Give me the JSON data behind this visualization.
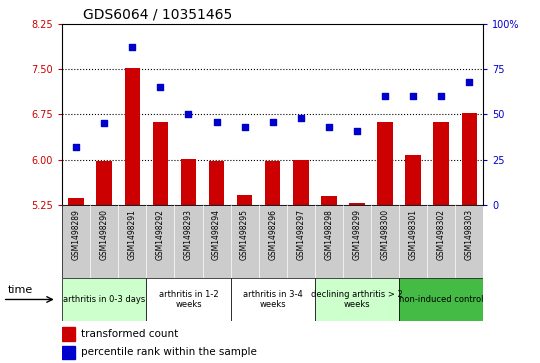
{
  "title": "GDS6064 / 10351465",
  "samples": [
    "GSM1498289",
    "GSM1498290",
    "GSM1498291",
    "GSM1498292",
    "GSM1498293",
    "GSM1498294",
    "GSM1498295",
    "GSM1498296",
    "GSM1498297",
    "GSM1498298",
    "GSM1498299",
    "GSM1498300",
    "GSM1498301",
    "GSM1498302",
    "GSM1498303"
  ],
  "bar_values": [
    5.37,
    5.98,
    7.52,
    6.62,
    6.02,
    5.98,
    5.42,
    5.98,
    5.99,
    5.4,
    5.28,
    6.62,
    6.07,
    6.62,
    6.78
  ],
  "blue_values": [
    32,
    45,
    87,
    65,
    50,
    46,
    43,
    46,
    48,
    43,
    41,
    60,
    60,
    60,
    68
  ],
  "ylim_left": [
    5.25,
    8.25
  ],
  "ylim_right": [
    0,
    100
  ],
  "yticks_left": [
    5.25,
    6.0,
    6.75,
    7.5,
    8.25
  ],
  "yticks_right": [
    0,
    25,
    50,
    75,
    100
  ],
  "bar_color": "#cc0000",
  "dot_color": "#0000cc",
  "grid_color": "#000000",
  "groups": [
    {
      "label": "arthritis in 0-3 days",
      "start": 0,
      "end": 3,
      "color": "#ccffcc"
    },
    {
      "label": "arthritis in 1-2\nweeks",
      "start": 3,
      "end": 6,
      "color": "#ffffff"
    },
    {
      "label": "arthritis in 3-4\nweeks",
      "start": 6,
      "end": 9,
      "color": "#ffffff"
    },
    {
      "label": "declining arthritis > 2\nweeks",
      "start": 9,
      "end": 12,
      "color": "#ccffcc"
    },
    {
      "label": "non-induced control",
      "start": 12,
      "end": 15,
      "color": "#44bb44"
    }
  ],
  "legend_bar_label": "transformed count",
  "legend_dot_label": "percentile rank within the sample",
  "xlabel": "time",
  "tick_color_left": "#cc0000",
  "tick_color_right": "#0000cc",
  "sample_bg_color": "#cccccc",
  "spine_color": "#000000"
}
